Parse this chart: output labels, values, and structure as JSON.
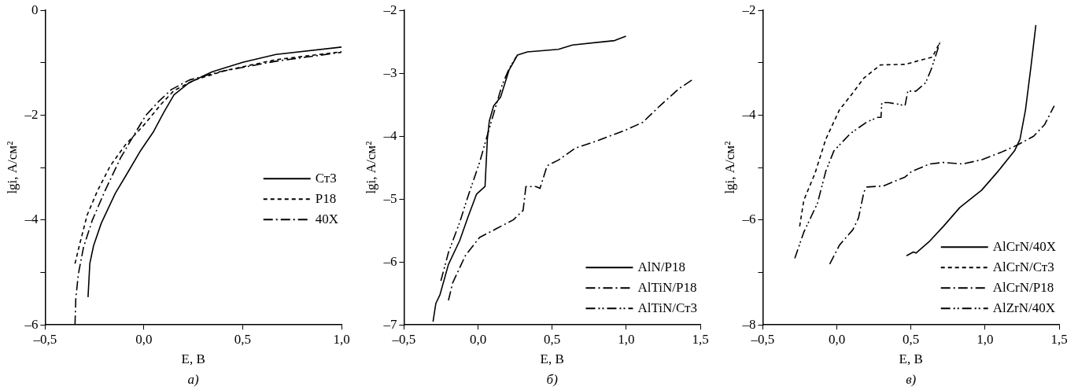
{
  "chart_data": [
    {
      "type": "line",
      "xlabel": "E, В",
      "ylabel": "lgi, А/см²",
      "annotations": [
        "а)"
      ],
      "legend": "right",
      "grid": false,
      "marker": "none",
      "xlim": [
        -0.5,
        1.0
      ],
      "xticks": [
        {
          "value": -0.5,
          "label": "–0,5"
        },
        {
          "value": 0,
          "label": "0,0"
        },
        {
          "value": 0.5,
          "label": "0,5"
        },
        {
          "value": 1.0,
          "label": "1,0"
        }
      ],
      "ylim": [
        -6,
        0
      ],
      "yticks": [
        {
          "value": -6,
          "label": "–6"
        },
        {
          "value": -5,
          "label": null
        },
        {
          "value": -4,
          "label": "–4"
        },
        {
          "value": -3,
          "label": null
        },
        {
          "value": -2,
          "label": "–2"
        },
        {
          "value": -1,
          "label": null
        },
        {
          "value": 0,
          "label": "0"
        }
      ],
      "series": [
        {
          "name": "Ст3",
          "color": "#000000",
          "line_style": "solid",
          "x": [
            -0.283,
            -0.274,
            -0.255,
            -0.216,
            -0.145,
            -0.08,
            -0.016,
            0.049,
            0.1,
            0.152,
            0.229,
            0.346,
            0.5,
            0.668,
            1.0
          ],
          "values": [
            -5.47,
            -4.83,
            -4.49,
            -4.06,
            -3.49,
            -3.08,
            -2.67,
            -2.31,
            -1.95,
            -1.61,
            -1.38,
            -1.17,
            -0.99,
            -0.84,
            -0.7
          ]
        },
        {
          "name": "Р18",
          "color": "#000000",
          "line_style": "dashed",
          "x": [
            -0.349,
            -0.326,
            -0.287,
            -0.235,
            -0.171,
            -0.093,
            -0.003,
            0.087,
            0.152,
            0.255,
            0.41,
            0.668,
            1.0
          ],
          "values": [
            -4.83,
            -4.47,
            -3.9,
            -3.44,
            -2.97,
            -2.56,
            -2.2,
            -1.79,
            -1.53,
            -1.33,
            -1.15,
            -0.94,
            -0.79
          ]
        },
        {
          "name": "40Х",
          "color": "#000000",
          "line_style": "dashdot",
          "x": [
            -0.349,
            -0.345,
            -0.332,
            -0.306,
            -0.261,
            -0.197,
            -0.119,
            -0.048,
            0.01,
            0.074,
            0.139,
            0.229,
            0.384,
            0.668,
            1.0
          ],
          "values": [
            -6.0,
            -5.5,
            -5.03,
            -4.52,
            -4.0,
            -3.44,
            -2.82,
            -2.36,
            -2.0,
            -1.74,
            -1.51,
            -1.33,
            -1.17,
            -0.97,
            -0.8
          ]
        }
      ]
    },
    {
      "type": "line",
      "xlabel": "E, В",
      "ylabel": "lgi, А/см²",
      "annotations": [
        "б)"
      ],
      "legend": "bottom right",
      "grid": false,
      "marker": "none",
      "xlim": [
        -0.5,
        1.5
      ],
      "xticks": [
        {
          "value": -0.5,
          "label": "–0,5"
        },
        {
          "value": 0,
          "label": "0,0"
        },
        {
          "value": 0.5,
          "label": "0,5"
        },
        {
          "value": 1.0,
          "label": "1,0"
        },
        {
          "value": 1.5,
          "label": "1,5"
        }
      ],
      "ylim": [
        -7,
        -2
      ],
      "yticks": [
        {
          "value": -7,
          "label": "–7"
        },
        {
          "value": -6,
          "label": "–6"
        },
        {
          "value": -5,
          "label": "–5"
        },
        {
          "value": -4,
          "label": "–4"
        },
        {
          "value": -3,
          "label": "–3"
        },
        {
          "value": -2,
          "label": "–2"
        }
      ],
      "series": [
        {
          "name": "AlN/P18",
          "color": "#000000",
          "line_style": "solid",
          "x": [
            -0.304,
            -0.285,
            -0.257,
            -0.2,
            -0.124,
            -0.067,
            -0.01,
            0.047,
            0.063,
            0.076,
            0.105,
            0.152,
            0.209,
            0.266,
            0.333,
            0.542,
            0.637,
            0.922,
            0.998
          ],
          "values": [
            -6.95,
            -6.66,
            -6.52,
            -6.04,
            -5.66,
            -5.28,
            -4.92,
            -4.8,
            -4.04,
            -3.76,
            -3.52,
            -3.38,
            -2.95,
            -2.71,
            -2.66,
            -2.62,
            -2.55,
            -2.48,
            -2.41
          ]
        },
        {
          "name": "AlTiN/P18",
          "color": "#000000",
          "line_style": "dashdot",
          "x": [
            -0.2,
            -0.171,
            -0.086,
            0.01,
            0.124,
            0.238,
            0.304,
            0.323,
            0.39,
            0.418,
            0.466,
            0.542,
            0.656,
            0.808,
            0.998,
            1.112,
            1.226,
            1.359,
            1.454
          ],
          "values": [
            -6.61,
            -6.33,
            -5.9,
            -5.61,
            -5.47,
            -5.33,
            -5.18,
            -4.8,
            -4.8,
            -4.83,
            -4.47,
            -4.38,
            -4.19,
            -4.07,
            -3.9,
            -3.78,
            -3.52,
            -3.24,
            -3.09
          ]
        },
        {
          "name": "AlTiN/Ст3",
          "color": "#000000",
          "line_style": "dashdotdot",
          "x": [
            -0.251,
            -0.2,
            -0.124,
            -0.067,
            0.01,
            0.067,
            0.114,
            0.162,
            0.209,
            0.257
          ],
          "values": [
            -6.3,
            -5.85,
            -5.37,
            -4.95,
            -4.42,
            -3.95,
            -3.57,
            -3.19,
            -2.93,
            -2.74
          ]
        }
      ]
    },
    {
      "type": "line",
      "xlabel": "E, В",
      "ylabel": "lgi, А/см²",
      "annotations": [
        "в)"
      ],
      "legend": "bottom right",
      "grid": false,
      "marker": "none",
      "xlim": [
        -0.5,
        1.5
      ],
      "xticks": [
        {
          "value": -0.5,
          "label": "–0,5"
        },
        {
          "value": 0,
          "label": "0,0"
        },
        {
          "value": 0.5,
          "label": "0,5"
        },
        {
          "value": 1.0,
          "label": "1,0"
        },
        {
          "value": 1.5,
          "label": "1,5"
        }
      ],
      "ylim": [
        -8,
        -2
      ],
      "yticks": [
        {
          "value": -8,
          "label": "–8"
        },
        {
          "value": -7,
          "label": null
        },
        {
          "value": -6,
          "label": "–6"
        },
        {
          "value": -5,
          "label": null
        },
        {
          "value": -4,
          "label": "–4"
        },
        {
          "value": -3,
          "label": null
        },
        {
          "value": -2,
          "label": "–2"
        }
      ],
      "series": [
        {
          "name": "AlCrN/40X",
          "color": "#000000",
          "line_style": "solid",
          "x": [
            0.47,
            0.516,
            0.534,
            0.627,
            0.719,
            0.83,
            0.977,
            1.088,
            1.199,
            1.236,
            1.273,
            1.31,
            1.343
          ],
          "values": [
            -6.68,
            -6.61,
            -6.63,
            -6.4,
            -6.12,
            -5.76,
            -5.43,
            -5.07,
            -4.68,
            -4.46,
            -3.9,
            -3.07,
            -2.28
          ]
        },
        {
          "name": "AlCrN/Ст3",
          "color": "#000000",
          "line_style": "dashed",
          "x": [
            -0.251,
            -0.223,
            -0.149,
            -0.075,
            0.017,
            0.109,
            0.183,
            0.294,
            0.46,
            0.645,
            0.697
          ],
          "values": [
            -6.12,
            -5.62,
            -5.12,
            -4.46,
            -3.9,
            -3.57,
            -3.29,
            -3.04,
            -3.03,
            -2.89,
            -2.6
          ]
        },
        {
          "name": "AlCrN/P18",
          "color": "#000000",
          "line_style": "dashdot",
          "x": [
            -0.048,
            0.017,
            0.109,
            0.146,
            0.183,
            0.202,
            0.313,
            0.46,
            0.506,
            0.627,
            0.719,
            0.848,
            0.977,
            1.106,
            1.217,
            1.328,
            1.402,
            1.467
          ],
          "values": [
            -6.84,
            -6.48,
            -6.18,
            -5.96,
            -5.46,
            -5.37,
            -5.35,
            -5.18,
            -5.07,
            -4.93,
            -4.9,
            -4.93,
            -4.85,
            -4.71,
            -4.57,
            -4.4,
            -4.18,
            -3.82
          ]
        },
        {
          "name": "AlZrN/40X",
          "color": "#000000",
          "line_style": "dashdotdot",
          "x": [
            -0.284,
            -0.223,
            -0.131,
            -0.075,
            -0.02,
            0.091,
            0.202,
            0.276,
            0.298,
            0.303,
            0.349,
            0.414,
            0.46,
            0.479,
            0.534,
            0.599,
            0.636,
            0.663,
            0.697
          ],
          "values": [
            -6.73,
            -6.23,
            -5.68,
            -5.07,
            -4.68,
            -4.35,
            -4.13,
            -4.04,
            -4.04,
            -3.76,
            -3.76,
            -3.79,
            -3.82,
            -3.54,
            -3.54,
            -3.38,
            -3.13,
            -2.9,
            -2.6
          ]
        }
      ]
    }
  ]
}
